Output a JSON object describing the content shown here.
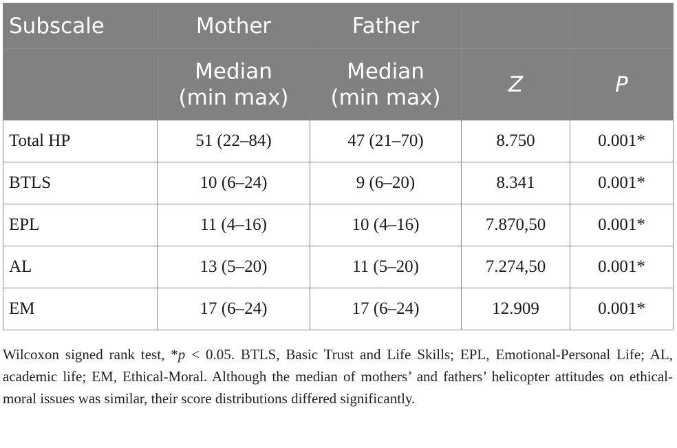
{
  "table": {
    "header_row1": [
      "Subscale",
      "Mother",
      "Father",
      "",
      ""
    ],
    "header_row2": [
      "",
      "Median\n(min max)",
      "Median\n(min max)",
      "Z",
      "P"
    ],
    "rows": [
      [
        "Total HP",
        "51 (22–84)",
        "47 (21–70)",
        "8.750",
        "0.001*"
      ],
      [
        "BTLS",
        "10 (6–24)",
        "9 (6–20)",
        "8.341",
        "0.001*"
      ],
      [
        "EPL",
        "11 (4–16)",
        "10 (4–16)",
        "7.870,50",
        "0.001*"
      ],
      [
        "AL",
        "13 (5–20)",
        "11 (5–20)",
        "7.274,50",
        "0.001*"
      ],
      [
        "EM",
        "17 (6–24)",
        "17 (6–24)",
        "12.909",
        "0.001*"
      ]
    ]
  },
  "footnote": {
    "part1": "Wilcoxon signed rank test, *",
    "p_symbol": "p",
    "part2": " < 0.05. BTLS, Basic Trust and Life Skills; EPL, Emotional-Personal Life; AL, academic life; EM, Ethical-Moral. Although the median of mothers’ and fathers’ helicopter attitudes on ethical-moral issues was similar, their score distributions differed significantly."
  },
  "colors": {
    "header_bg": "#818181",
    "header_text": "#ffffff",
    "border": "#8a8a8a",
    "body_text": "#1a1a1a"
  }
}
